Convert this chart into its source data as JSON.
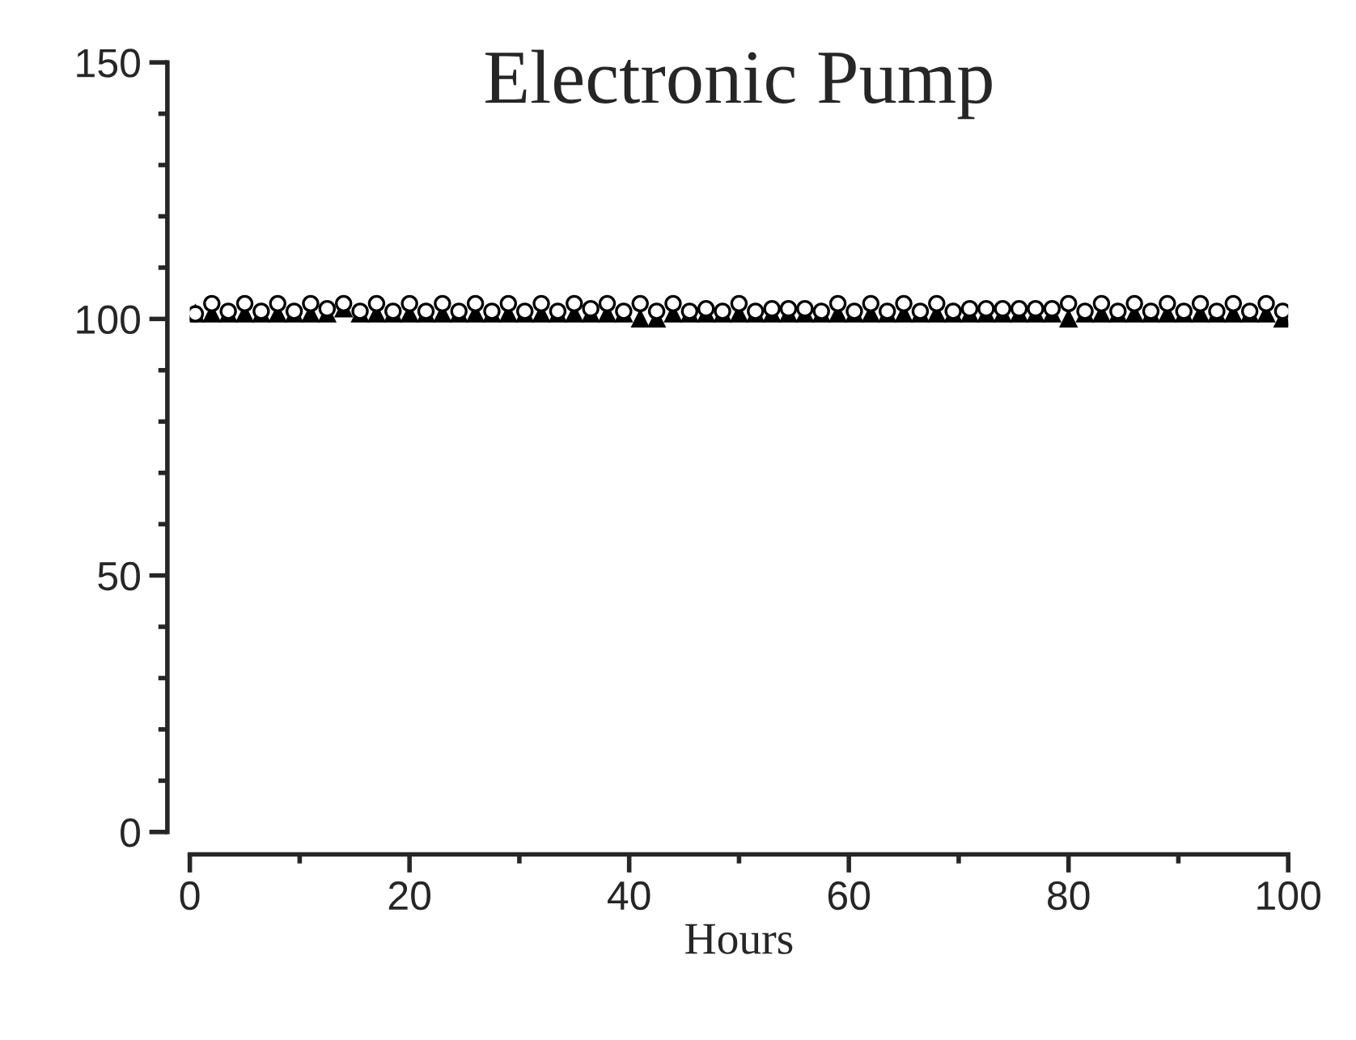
{
  "chart_data": {
    "type": "scatter",
    "title": "Electronic Pump",
    "xlabel": "Hours",
    "x": [
      0.5,
      2,
      3.5,
      5,
      6.5,
      8,
      9.5,
      11,
      12.5,
      14,
      15.5,
      17,
      18.5,
      20,
      21.5,
      23,
      24.5,
      26,
      27.5,
      29,
      30.5,
      32,
      33.5,
      35,
      36.5,
      38,
      39.5,
      41,
      42.5,
      44,
      45.5,
      47,
      48.5,
      50,
      51.5,
      53,
      54.5,
      56,
      57.5,
      59,
      60.5,
      62,
      63.5,
      65,
      66.5,
      68,
      69.5,
      71,
      72.5,
      74,
      75.5,
      77,
      78.5,
      80,
      81.5,
      83,
      84.5,
      86,
      87.5,
      89,
      90.5,
      92,
      93.5,
      95,
      96.5,
      98,
      99.5
    ],
    "series": [
      {
        "color": "#000000",
        "marker": "circle",
        "values": [
          101,
          103,
          101.5,
          103,
          101.5,
          103,
          101.5,
          103,
          102,
          103,
          101.5,
          103,
          101.5,
          103,
          101.5,
          103,
          101.5,
          103,
          101.5,
          103,
          101.5,
          103,
          101.5,
          103,
          102,
          103,
          101.5,
          103,
          101.5,
          103,
          101.5,
          102,
          101.5,
          103,
          101.5,
          102,
          102,
          102,
          101.5,
          103,
          101.5,
          103,
          101.5,
          103,
          101.5,
          103,
          101.5,
          102,
          102,
          102,
          102,
          102,
          102,
          103,
          101.5,
          103,
          101.5,
          103,
          101.5,
          103,
          101.5,
          103,
          101.5,
          103,
          101.5,
          103,
          101.5
        ]
      },
      {
        "color": "#000000",
        "marker": "triangle",
        "values": [
          101,
          101,
          101,
          101,
          101,
          101,
          101,
          101,
          101,
          102,
          101,
          101,
          101,
          101,
          101,
          101,
          101,
          101,
          101,
          101,
          101,
          101,
          101,
          101,
          101,
          101,
          101,
          100,
          100,
          101,
          101,
          101,
          101,
          101,
          101,
          101,
          101,
          101,
          101,
          101,
          101,
          101,
          101,
          101,
          101,
          101,
          101,
          101,
          101,
          101,
          101,
          101,
          101,
          100,
          101,
          101,
          101,
          101,
          101,
          101,
          101,
          101,
          101,
          101,
          101,
          101,
          100
        ]
      }
    ],
    "xlim": [
      0,
      100
    ],
    "xticks": [
      0,
      20,
      40,
      60,
      80,
      100
    ],
    "ylim": [
      0,
      150
    ],
    "yticks": [
      0,
      50,
      100,
      150
    ],
    "grid": false,
    "legend": false
  }
}
